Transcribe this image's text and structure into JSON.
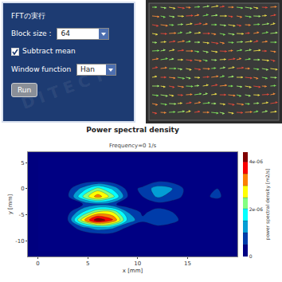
{
  "panel": {
    "heading": "FFTの実行",
    "block_size_label": "Block size :",
    "block_size": 64,
    "subtract_mean": {
      "label": "Subtract mean",
      "checked": true
    },
    "window_function_label": "Window function",
    "window_function": "Han",
    "button": "Run",
    "watermark": "DITECT"
  },
  "chart_data": {
    "type": "contour",
    "title": "Power spectral density",
    "subtitle": "Frequency=0 1/s",
    "x_label": "x [mm]",
    "y_label": "y [mm]",
    "colorbar_title": "power spectral density [m2/s]",
    "x": [
      0,
      1.5,
      3,
      4.5,
      6,
      7.5,
      9,
      10.5,
      12,
      13.5,
      15,
      16.5,
      18,
      19.5
    ],
    "y": [
      -12,
      -10.5,
      -9,
      -7.5,
      -6,
      -4.5,
      -3,
      -1.5,
      0,
      1.5,
      3,
      4.5,
      6
    ],
    "z": [
      [
        0,
        0,
        0,
        0,
        0,
        0,
        0,
        0,
        0,
        0,
        0,
        0,
        0,
        0
      ],
      [
        0,
        0,
        0,
        0,
        0,
        0,
        0,
        0,
        0,
        0,
        0,
        0,
        0,
        0
      ],
      [
        0,
        0,
        0,
        1e-07,
        2e-07,
        2e-07,
        1e-07,
        0,
        0,
        0,
        0,
        0,
        0,
        0
      ],
      [
        0,
        0,
        2e-07,
        8e-07,
        1.3e-06,
        1.1e-06,
        4e-07,
        2e-07,
        3e-07,
        2e-07,
        1e-07,
        1e-07,
        1e-07,
        1e-07
      ],
      [
        0,
        1e-07,
        5e-07,
        2.8e-06,
        4.4e-06,
        3.6e-06,
        1.4e-06,
        6e-07,
        1e-06,
        7e-07,
        2e-07,
        4e-07,
        5e-07,
        3e-07
      ],
      [
        0,
        0,
        3e-07,
        1.5e-06,
        2.6e-06,
        2.5e-06,
        1e-06,
        4e-07,
        7e-07,
        5e-07,
        2e-07,
        3e-07,
        5e-07,
        3e-07
      ],
      [
        0,
        0,
        1e-07,
        5e-07,
        8e-07,
        6e-07,
        2e-07,
        2e-07,
        3e-07,
        2e-07,
        1e-07,
        1e-07,
        2e-07,
        1e-07
      ],
      [
        0,
        0,
        4e-07,
        2e-06,
        3.3e-06,
        2.2e-06,
        5e-07,
        5e-07,
        1.1e-06,
        8e-07,
        3e-07,
        4e-07,
        6e-07,
        2e-07
      ],
      [
        0,
        0,
        3e-07,
        1.2e-06,
        2.2e-06,
        1.4e-06,
        3e-07,
        6e-07,
        1.3e-06,
        1e-06,
        3e-07,
        3e-07,
        5e-07,
        2e-07
      ],
      [
        0,
        0,
        0,
        2e-07,
        3e-07,
        2e-07,
        0,
        2e-07,
        4e-07,
        3e-07,
        1e-07,
        1e-07,
        2e-07,
        1e-07
      ],
      [
        0,
        0,
        0,
        0,
        0,
        0,
        0,
        0,
        1e-07,
        1e-07,
        0,
        0,
        0,
        0
      ],
      [
        0,
        0,
        0,
        0,
        0,
        0,
        0,
        0,
        0,
        0,
        0,
        0,
        0,
        0
      ],
      [
        0,
        0,
        0,
        0,
        0,
        0,
        0,
        0,
        0,
        0,
        0,
        0,
        0,
        0
      ]
    ],
    "xlim": [
      -1,
      20
    ],
    "xticks": [
      0,
      5,
      10,
      15
    ],
    "ylim": [
      -13,
      7
    ],
    "yticks": [
      5,
      0,
      -5,
      -10
    ],
    "zlim": [
      0,
      4.4e-06
    ],
    "zticks": [
      0,
      {
        "value": 2e-06,
        "label": "2e-06"
      },
      {
        "value": 4e-06,
        "label": "4e-06"
      }
    ],
    "grid": false
  }
}
